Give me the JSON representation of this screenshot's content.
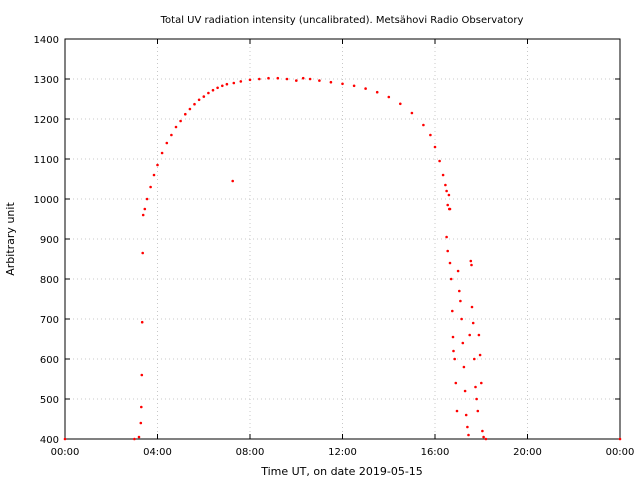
{
  "chart_data": {
    "type": "scatter",
    "title": "Total UV radiation intensity (uncalibrated). Metsähovi Radio Observatory",
    "xlabel": "Time UT, on date 2019-05-15",
    "ylabel": "Arbitrary unit",
    "xlim": [
      0,
      24
    ],
    "ylim": [
      400,
      1400
    ],
    "x_ticks": [
      0,
      4,
      8,
      12,
      16,
      20,
      24
    ],
    "x_tick_labels": [
      "00:00",
      "04:00",
      "08:00",
      "12:00",
      "16:00",
      "20:00",
      "00:00"
    ],
    "y_ticks": [
      400,
      500,
      600,
      700,
      800,
      900,
      1000,
      1100,
      1200,
      1300,
      1400
    ],
    "y_tick_labels": [
      "400",
      "500",
      "600",
      "700",
      "800",
      "900",
      "1000",
      "1100",
      "1200",
      "1300",
      "1400"
    ],
    "grid": true,
    "marker_color": "#ff0000",
    "series": [
      {
        "name": "",
        "points": [
          [
            0.0,
            400
          ],
          [
            3.0,
            400
          ],
          [
            3.2,
            405
          ],
          [
            3.28,
            440
          ],
          [
            3.3,
            480
          ],
          [
            3.32,
            560
          ],
          [
            3.34,
            692
          ],
          [
            3.36,
            865
          ],
          [
            3.38,
            960
          ],
          [
            3.45,
            975
          ],
          [
            3.55,
            1000
          ],
          [
            3.7,
            1030
          ],
          [
            3.85,
            1060
          ],
          [
            4.0,
            1085
          ],
          [
            4.2,
            1115
          ],
          [
            4.4,
            1140
          ],
          [
            4.6,
            1160
          ],
          [
            4.8,
            1180
          ],
          [
            5.0,
            1195
          ],
          [
            5.2,
            1212
          ],
          [
            5.4,
            1225
          ],
          [
            5.6,
            1237
          ],
          [
            5.8,
            1248
          ],
          [
            6.0,
            1256
          ],
          [
            6.2,
            1265
          ],
          [
            6.4,
            1272
          ],
          [
            6.6,
            1278
          ],
          [
            6.8,
            1283
          ],
          [
            7.0,
            1287
          ],
          [
            7.25,
            1045
          ],
          [
            7.3,
            1290
          ],
          [
            7.6,
            1294
          ],
          [
            8.0,
            1298
          ],
          [
            8.4,
            1300
          ],
          [
            8.8,
            1302
          ],
          [
            9.2,
            1302
          ],
          [
            9.6,
            1300
          ],
          [
            10.0,
            1296
          ],
          [
            10.3,
            1302
          ],
          [
            10.6,
            1300
          ],
          [
            11.0,
            1296
          ],
          [
            11.5,
            1292
          ],
          [
            12.0,
            1288
          ],
          [
            12.5,
            1283
          ],
          [
            13.0,
            1276
          ],
          [
            13.5,
            1267
          ],
          [
            14.0,
            1255
          ],
          [
            14.5,
            1238
          ],
          [
            15.0,
            1215
          ],
          [
            15.5,
            1185
          ],
          [
            15.8,
            1160
          ],
          [
            16.0,
            1130
          ],
          [
            16.2,
            1095
          ],
          [
            16.35,
            1060
          ],
          [
            16.45,
            1035
          ],
          [
            16.5,
            1020
          ],
          [
            16.55,
            985
          ],
          [
            16.6,
            1010
          ],
          [
            16.62,
            975
          ],
          [
            16.65,
            975
          ],
          [
            16.5,
            905
          ],
          [
            16.55,
            870
          ],
          [
            16.65,
            840
          ],
          [
            16.7,
            800
          ],
          [
            16.75,
            720
          ],
          [
            16.78,
            655
          ],
          [
            16.8,
            620
          ],
          [
            16.85,
            600
          ],
          [
            16.9,
            540
          ],
          [
            16.95,
            470
          ],
          [
            17.0,
            820
          ],
          [
            17.05,
            770
          ],
          [
            17.1,
            745
          ],
          [
            17.15,
            700
          ],
          [
            17.2,
            640
          ],
          [
            17.25,
            580
          ],
          [
            17.3,
            520
          ],
          [
            17.35,
            460
          ],
          [
            17.4,
            430
          ],
          [
            17.45,
            410
          ],
          [
            17.5,
            660
          ],
          [
            17.55,
            845
          ],
          [
            17.58,
            835
          ],
          [
            17.6,
            730
          ],
          [
            17.65,
            690
          ],
          [
            17.7,
            600
          ],
          [
            17.75,
            530
          ],
          [
            17.8,
            500
          ],
          [
            17.85,
            470
          ],
          [
            17.9,
            660
          ],
          [
            17.95,
            610
          ],
          [
            18.0,
            540
          ],
          [
            18.05,
            420
          ],
          [
            18.1,
            405
          ],
          [
            18.2,
            400
          ],
          [
            24.0,
            400
          ]
        ]
      }
    ]
  }
}
